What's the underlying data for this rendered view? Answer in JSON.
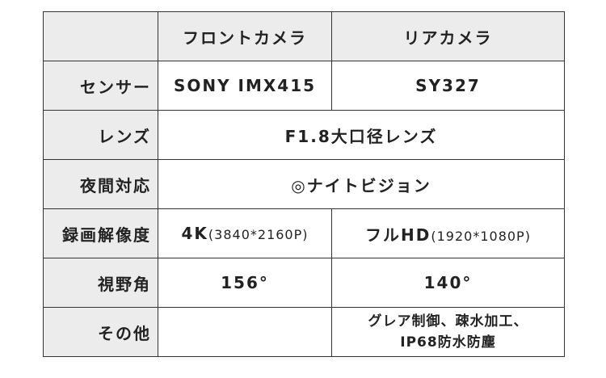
{
  "table": {
    "header": {
      "front": "フロントカメラ",
      "rear": "リアカメラ"
    },
    "rows": [
      {
        "label": "センサー",
        "front": "SONY IMX415",
        "rear": "SY327"
      },
      {
        "label": "レンズ",
        "both": "F1.8大口径レンズ"
      },
      {
        "label": "夜間対応",
        "both": "◎ナイトビジョン"
      },
      {
        "label": "録画解像度",
        "front": {
          "main": "4K",
          "sub": "(3840*2160P)"
        },
        "rear": {
          "main": "フルHD",
          "sub": "(1920*1080P)"
        }
      },
      {
        "label": "視野角",
        "front": "156°",
        "rear": "140°"
      },
      {
        "label": "その他",
        "rear": [
          "グレア制御、疎水加工、",
          "IP68防水防塵"
        ]
      }
    ]
  }
}
